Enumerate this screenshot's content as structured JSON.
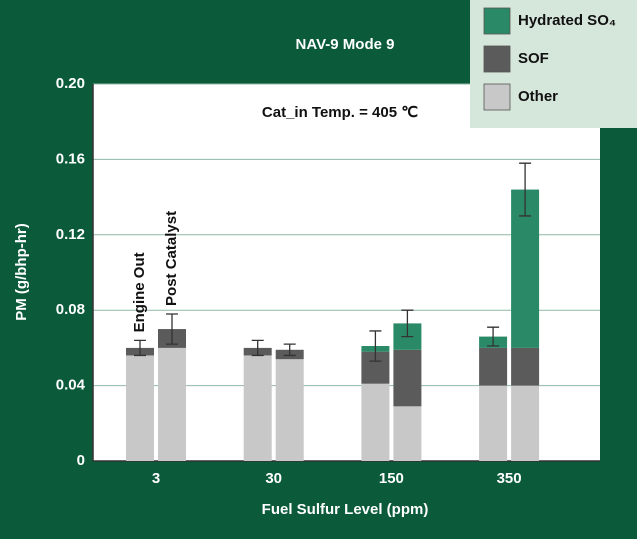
{
  "chart_data": {
    "type": "stacked_bar_pairs",
    "title": "NAV-9 Mode 9",
    "annotation": "Cat_in Temp. = 405 ℃",
    "x_label": "Fuel Sulfur Level (ppm)",
    "y_label": "PM (g/bhp-hr)",
    "categories": [
      "3",
      "30",
      "150",
      "350"
    ],
    "bars": [
      "Engine Out",
      "Post Catalyst"
    ],
    "series": [
      {
        "name": "Other",
        "color": "#c8c8c8",
        "values": [
          [
            0.056,
            0.06
          ],
          [
            0.056,
            0.054
          ],
          [
            0.041,
            0.029
          ],
          [
            0.04,
            0.04
          ]
        ]
      },
      {
        "name": "SOF",
        "color": "#5b5b5b",
        "values": [
          [
            0.004,
            0.01
          ],
          [
            0.004,
            0.005
          ],
          [
            0.017,
            0.03
          ],
          [
            0.02,
            0.02
          ]
        ]
      },
      {
        "name": "Hydrated SO₄",
        "color": "#2a8a68",
        "values": [
          [
            0,
            0
          ],
          [
            0,
            0
          ],
          [
            0.003,
            0.014
          ],
          [
            0.006,
            0.084
          ]
        ]
      }
    ],
    "errors": [
      [
        0.004,
        0.008
      ],
      [
        0.004,
        0.003
      ],
      [
        0.008,
        0.007
      ],
      [
        0.005,
        0.014
      ]
    ],
    "ylim": [
      0,
      0.2
    ],
    "yticks": [
      0,
      0.04,
      0.08,
      0.12,
      0.16,
      {
        "value": 0.2,
        "label": "0.20"
      }
    ],
    "grid": true,
    "legend": "top-right"
  }
}
